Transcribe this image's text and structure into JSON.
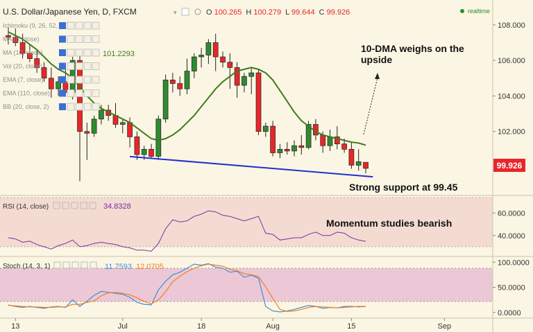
{
  "header": {
    "symbol": "U.S. Dollar/Japanese Yen, D, FXCM",
    "ohlc": [
      {
        "k": "O",
        "v": "100.265"
      },
      {
        "k": "H",
        "v": "100.279"
      },
      {
        "k": "L",
        "v": "99.644"
      },
      {
        "k": "C",
        "v": "99.926"
      }
    ],
    "realtime": "realtime"
  },
  "indicators": [
    "Ichimoku (9, 26, 52, 26)",
    "MA (5, close)",
    "MA (10, close)",
    "Vol (20, close)",
    "EMA (7, close)",
    "EMA (110, close)",
    "BB (20, close, 2)"
  ],
  "ma_value": "101.2293",
  "last_price": "99.926",
  "annotations": {
    "dma": "10-DMA weighs on the upside",
    "support": "Strong support at 99.45",
    "momentum": "Momentum studies bearish"
  },
  "colors": {
    "up": "#2e8b2e",
    "down": "#e8262a",
    "ma": "#3e7a1e",
    "trendline": "#1f2fcf",
    "rsi": "#7b2d9e",
    "stoch_k": "#3d8fd8",
    "stoch_d": "#ef7d22",
    "price_tag": "#e8262a"
  },
  "rsi_label": "RSI (14, close)",
  "rsi_value": "34.8328",
  "stoch_label": "Stoch (14, 3, 1)",
  "stoch_k_value": "11.7593",
  "stoch_d_value": "12.0705",
  "chart_data": [
    {
      "type": "candlestick",
      "title": "U.S. Dollar/Japanese Yen, D, FXCM",
      "ylim": [
        98.4,
        109.4
      ],
      "y_ticks": [
        "108.000",
        "106.000",
        "104.000",
        "102.000"
      ],
      "x_ticks": [
        "13",
        "Jul",
        "18",
        "Aug",
        "15",
        "Sep"
      ],
      "candles": [
        [
          107.4,
          107.9,
          106.9,
          107.3
        ],
        [
          107.3,
          107.8,
          106.8,
          107.0
        ],
        [
          107.0,
          107.5,
          106.1,
          106.4
        ],
        [
          106.4,
          106.9,
          105.9,
          106.1
        ],
        [
          106.1,
          106.6,
          105.3,
          105.6
        ],
        [
          105.6,
          105.9,
          104.8,
          105.0
        ],
        [
          105.0,
          105.6,
          103.9,
          104.4
        ],
        [
          104.4,
          105.1,
          104.0,
          104.8
        ],
        [
          104.8,
          105.6,
          104.0,
          104.2
        ],
        [
          104.2,
          106.2,
          103.8,
          106.0
        ],
        [
          106.0,
          106.3,
          99.2,
          102.0
        ],
        [
          102.0,
          102.5,
          100.4,
          101.9
        ],
        [
          101.9,
          102.9,
          101.7,
          102.7
        ],
        [
          102.7,
          103.5,
          102.4,
          103.2
        ],
        [
          103.2,
          103.5,
          102.6,
          102.9
        ],
        [
          102.9,
          103.6,
          102.2,
          102.4
        ],
        [
          102.4,
          102.7,
          101.9,
          102.5
        ],
        [
          102.5,
          102.8,
          101.1,
          101.7
        ],
        [
          101.7,
          102.0,
          100.4,
          100.7
        ],
        [
          100.7,
          101.2,
          100.4,
          101.0
        ],
        [
          101.0,
          101.3,
          100.5,
          100.6
        ],
        [
          100.6,
          102.9,
          100.4,
          102.7
        ],
        [
          102.7,
          105.2,
          102.5,
          104.9
        ],
        [
          104.9,
          105.3,
          104.2,
          104.7
        ],
        [
          104.7,
          105.1,
          104.0,
          104.4
        ],
        [
          104.4,
          106.1,
          104.1,
          105.4
        ],
        [
          105.4,
          106.4,
          105.0,
          106.2
        ],
        [
          106.2,
          106.7,
          105.6,
          106.3
        ],
        [
          106.3,
          107.2,
          105.8,
          107.0
        ],
        [
          107.0,
          107.5,
          105.4,
          106.2
        ],
        [
          106.2,
          106.5,
          105.6,
          105.9
        ],
        [
          105.9,
          106.4,
          104.4,
          105.6
        ],
        [
          105.6,
          105.9,
          103.9,
          104.6
        ],
        [
          104.6,
          105.3,
          104.2,
          105.1
        ],
        [
          105.1,
          105.6,
          104.1,
          105.3
        ],
        [
          105.3,
          105.5,
          101.8,
          102.0
        ],
        [
          102.0,
          102.5,
          101.7,
          102.3
        ],
        [
          102.3,
          102.6,
          100.6,
          100.8
        ],
        [
          100.8,
          101.3,
          100.5,
          101.0
        ],
        [
          101.0,
          101.4,
          100.7,
          100.9
        ],
        [
          100.9,
          101.5,
          100.6,
          101.2
        ],
        [
          101.2,
          101.8,
          100.7,
          101.1
        ],
        [
          101.1,
          102.6,
          101.0,
          102.4
        ],
        [
          102.4,
          102.7,
          101.5,
          101.8
        ],
        [
          101.8,
          102.0,
          100.8,
          101.2
        ],
        [
          101.2,
          102.1,
          100.9,
          101.7
        ],
        [
          101.7,
          102.3,
          101.0,
          101.3
        ],
        [
          101.3,
          101.6,
          100.8,
          101.0
        ],
        [
          101.0,
          101.4,
          99.9,
          100.1
        ],
        [
          100.1,
          101.0,
          99.8,
          100.3
        ],
        [
          100.265,
          100.279,
          99.644,
          99.926
        ]
      ],
      "ma10": [
        107.6,
        107.4,
        107.2,
        106.9,
        106.6,
        106.2,
        105.8,
        105.5,
        105.3,
        105.0,
        104.5,
        104.0,
        103.6,
        103.3,
        103.1,
        102.9,
        102.7,
        102.5,
        102.2,
        101.9,
        101.6,
        101.5,
        101.6,
        101.8,
        102.1,
        102.5,
        102.9,
        103.4,
        103.9,
        104.4,
        104.8,
        105.1,
        105.4,
        105.5,
        105.6,
        105.5,
        105.3,
        104.9,
        104.3,
        103.7,
        103.1,
        102.6,
        102.3,
        102.0,
        101.8,
        101.7,
        101.6,
        101.5,
        101.4,
        101.35,
        101.23
      ],
      "support_line": {
        "start_index": 17,
        "end_index": 51,
        "start_value": 100.59,
        "end_value": 99.45
      }
    },
    {
      "type": "line",
      "title": "RSI (14, close)",
      "ylim": [
        22,
        75
      ],
      "y_ticks": [
        "60.0000",
        "40.0000"
      ],
      "series": [
        {
          "name": "RSI (14, close)",
          "values": [
            38,
            37,
            34,
            35,
            32,
            30,
            28,
            31,
            33,
            36,
            30,
            31,
            33,
            34,
            33,
            32,
            30,
            29,
            27,
            27,
            26,
            33,
            46,
            54,
            52,
            53,
            57,
            59,
            62,
            61,
            58,
            57,
            55,
            53,
            55,
            57,
            42,
            41,
            36,
            37,
            38,
            38,
            41,
            43,
            40,
            40,
            43,
            42,
            38,
            36,
            34.8
          ]
        }
      ]
    },
    {
      "type": "line",
      "title": "Stoch (14, 3, 1)",
      "ylim": [
        -10,
        110
      ],
      "y_ticks": [
        "100.0000",
        "50.0000",
        "0.0000"
      ],
      "series": [
        {
          "name": "K",
          "values": [
            15,
            12,
            10,
            12,
            10,
            8,
            11,
            12,
            10,
            25,
            12,
            22,
            34,
            42,
            40,
            38,
            36,
            30,
            20,
            16,
            15,
            45,
            62,
            75,
            80,
            88,
            96,
            94,
            97,
            90,
            88,
            80,
            82,
            70,
            74,
            68,
            12,
            3,
            1,
            3,
            6,
            10,
            14,
            12,
            8,
            10,
            9,
            12,
            12,
            11,
            11.8
          ]
        },
        {
          "name": "D",
          "values": [
            14,
            13,
            12,
            11,
            11,
            10,
            10,
            11,
            11,
            16,
            16,
            20,
            23,
            33,
            39,
            40,
            38,
            35,
            29,
            22,
            17,
            25,
            41,
            61,
            72,
            81,
            88,
            93,
            96,
            94,
            92,
            86,
            83,
            77,
            75,
            71,
            51,
            28,
            6,
            2,
            3,
            6,
            10,
            12,
            11,
            10,
            9,
            10,
            11,
            12,
            12.07
          ]
        }
      ]
    }
  ]
}
